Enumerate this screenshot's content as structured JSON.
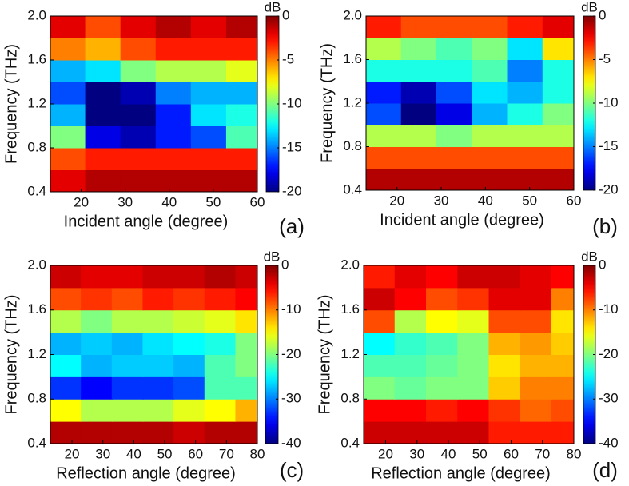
{
  "chart_data": [
    {
      "type": "heatmap",
      "x_label": "Incident angle (degree)",
      "y_label": "Frequency (THz)",
      "panel_label": "(a)",
      "colorbar_label": "dB",
      "colormap": "jet",
      "xlim": [
        13,
        60
      ],
      "xticks": [
        20,
        30,
        40,
        50,
        60
      ],
      "ylim": [
        0.4,
        2.0
      ],
      "yticks": [
        0.4,
        0.8,
        1.2,
        1.6,
        {
          "value": 2.0,
          "label": "2.0"
        }
      ],
      "clim": [
        -20,
        0
      ],
      "cticks": [
        0,
        -5,
        -10,
        -15,
        -20
      ],
      "x": [
        17,
        25,
        33,
        41,
        49,
        57
      ],
      "y": [
        0.5,
        0.7,
        0.9,
        1.1,
        1.3,
        1.5,
        1.7,
        1.9
      ],
      "z": [
        [
          -2,
          -1,
          -1,
          -1,
          -1,
          -1
        ],
        [
          -4,
          -3,
          -3,
          -3,
          -3,
          -3
        ],
        [
          -10,
          -18,
          -19,
          -17,
          -16,
          -11
        ],
        [
          -14,
          -20,
          -20,
          -17,
          -13,
          -12
        ],
        [
          -16,
          -20,
          -19,
          -15,
          -14,
          -14
        ],
        [
          -14,
          -13,
          -10,
          -9,
          -9,
          -8
        ],
        [
          -5,
          -6,
          -4,
          -3,
          -3,
          -3
        ],
        [
          -2,
          -4,
          -2,
          -1,
          -2,
          -1
        ]
      ]
    },
    {
      "type": "heatmap",
      "x_label": "Incident angle (degree)",
      "y_label": "Frequency (THz)",
      "panel_label": "(b)",
      "colorbar_label": "dB",
      "colormap": "jet",
      "xlim": [
        13,
        60
      ],
      "xticks": [
        20,
        30,
        40,
        50,
        60
      ],
      "ylim": [
        0.4,
        2.0
      ],
      "yticks": [
        0.4,
        0.8,
        1.2,
        1.6,
        {
          "value": 2.0,
          "label": "2.0"
        }
      ],
      "clim": [
        -20,
        0
      ],
      "cticks": [
        0,
        -5,
        -10,
        -15,
        -20
      ],
      "x": [
        17,
        25,
        33,
        41,
        49,
        57
      ],
      "y": [
        0.5,
        0.7,
        0.9,
        1.1,
        1.3,
        1.5,
        1.7,
        1.9
      ],
      "z": [
        [
          -1,
          -1,
          -1,
          -1,
          -1,
          -1
        ],
        [
          -4,
          -4,
          -4,
          -4,
          -4,
          -4
        ],
        [
          -9,
          -9,
          -10,
          -9,
          -9,
          -9
        ],
        [
          -16,
          -20,
          -18,
          -14,
          -12,
          -10
        ],
        [
          -17,
          -19,
          -16,
          -13,
          -14,
          -12
        ],
        [
          -12,
          -12,
          -12,
          -11,
          -15,
          -12
        ],
        [
          -9,
          -10,
          -11,
          -10,
          -13,
          -7
        ],
        [
          -3,
          -4,
          -4,
          -4,
          -3,
          -2
        ]
      ]
    },
    {
      "type": "heatmap",
      "x_label": "Reflection angle (degree)",
      "y_label": "Frequency (THz)",
      "panel_label": "(c)",
      "colorbar_label": "dB",
      "colormap": "jet",
      "xlim": [
        13,
        80
      ],
      "xticks": [
        20,
        30,
        40,
        50,
        60,
        70,
        80
      ],
      "ylim": [
        0.4,
        2.0
      ],
      "yticks": [
        0.4,
        0.8,
        1.2,
        1.6,
        {
          "value": 2.0,
          "label": "2.0"
        }
      ],
      "clim": [
        -40,
        0
      ],
      "cticks": [
        0,
        -10,
        -20,
        -30,
        -40
      ],
      "x": [
        18,
        28,
        38,
        48,
        58,
        68,
        78
      ],
      "y": [
        0.5,
        0.7,
        0.9,
        1.1,
        1.3,
        1.5,
        1.7,
        1.9
      ],
      "z": [
        [
          -2,
          -2,
          -2,
          -2,
          -3,
          -2,
          -2
        ],
        [
          -15,
          -18,
          -18,
          -18,
          -16,
          -15,
          -12
        ],
        [
          -33,
          -35,
          -33,
          -33,
          -32,
          -22,
          -22
        ],
        [
          -25,
          -28,
          -27,
          -27,
          -28,
          -22,
          -20
        ],
        [
          -28,
          -27,
          -28,
          -26,
          -25,
          -24,
          -20
        ],
        [
          -18,
          -20,
          -18,
          -18,
          -17,
          -16,
          -14
        ],
        [
          -8,
          -7,
          -8,
          -6,
          -7,
          -6,
          -5
        ],
        [
          -3,
          -4,
          -4,
          -3,
          -3,
          -2,
          -3
        ]
      ]
    },
    {
      "type": "heatmap",
      "x_label": "Reflection angle (degree)",
      "y_label": "Frequency (THz)",
      "panel_label": "(d)",
      "colorbar_label": "dB",
      "colormap": "jet",
      "xlim": [
        13,
        80
      ],
      "xticks": [
        20,
        30,
        40,
        50,
        60,
        70,
        80
      ],
      "ylim": [
        0.4,
        2.0
      ],
      "yticks": [
        0.4,
        0.8,
        1.2,
        1.6,
        {
          "value": 2.0,
          "label": "2.0"
        }
      ],
      "clim": [
        -40,
        0
      ],
      "cticks": [
        0,
        -10,
        -20,
        -30,
        -40
      ],
      "x": [
        18,
        28,
        38,
        48,
        58,
        68,
        78
      ],
      "y": [
        0.5,
        0.7,
        0.9,
        1.1,
        1.3,
        1.5,
        1.7,
        1.9
      ],
      "z": [
        [
          -3,
          -3,
          -3,
          -3,
          -6,
          -6,
          -6
        ],
        [
          -5,
          -5,
          -6,
          -5,
          -7,
          -9,
          -8
        ],
        [
          -20,
          -21,
          -20,
          -20,
          -13,
          -10,
          -10
        ],
        [
          -22,
          -22,
          -21,
          -20,
          -14,
          -12,
          -12
        ],
        [
          -25,
          -23,
          -22,
          -20,
          -12,
          -11,
          -13
        ],
        [
          -8,
          -18,
          -15,
          -16,
          -8,
          -8,
          -14
        ],
        [
          -3,
          -5,
          -8,
          -7,
          -4,
          -4,
          -10
        ],
        [
          -6,
          -4,
          -5,
          -3,
          -3,
          -4,
          -5
        ]
      ]
    }
  ]
}
